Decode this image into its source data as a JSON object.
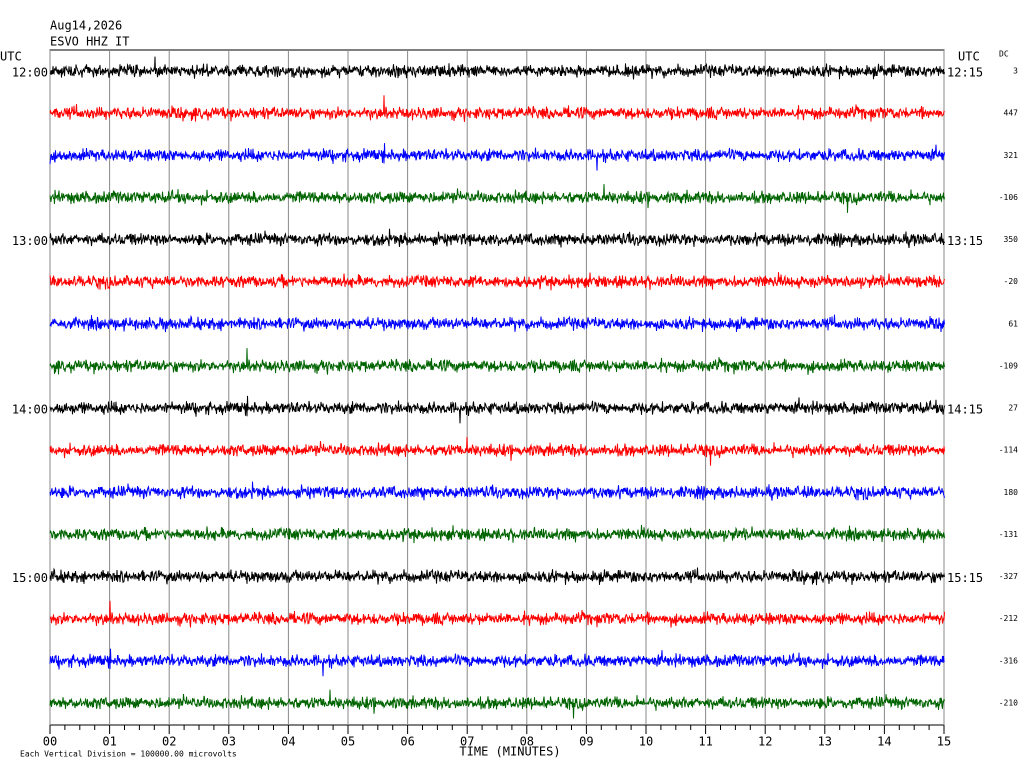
{
  "chart_data": {
    "type": "helicorder",
    "date": "Aug14,2026",
    "station": "ESVO HHZ IT",
    "left_axis_label": "UTC",
    "right_axis_label": "UTC",
    "dc_label": "DC",
    "left_times": [
      "12:00",
      "13:00",
      "14:00",
      "15:00"
    ],
    "right_times": [
      "12:15",
      "13:15",
      "14:15",
      "15:15"
    ],
    "dc_values": [
      3,
      447,
      321,
      -106,
      350,
      -20,
      61,
      -109,
      27,
      -114,
      180,
      -131,
      -327,
      -212,
      -316,
      -210
    ],
    "trace_colors": [
      "#000000",
      "#ff0000",
      "#0000ff",
      "#006400"
    ],
    "xlabel": "TIME (MINUTES)",
    "xlim": [
      0,
      15
    ],
    "xticks": [
      {
        "value": 0,
        "label": "00"
      },
      {
        "value": 1,
        "label": "01"
      },
      {
        "value": 2,
        "label": "02"
      },
      {
        "value": 3,
        "label": "03"
      },
      {
        "value": 4,
        "label": "04"
      },
      {
        "value": 5,
        "label": "05"
      },
      {
        "value": 6,
        "label": "06"
      },
      {
        "value": 7,
        "label": "07"
      },
      {
        "value": 8,
        "label": "08"
      },
      {
        "value": 9,
        "label": "09"
      },
      {
        "value": 10,
        "label": "10"
      },
      {
        "value": 11,
        "label": "11"
      },
      {
        "value": 12,
        "label": "12"
      },
      {
        "value": 13,
        "label": "13"
      },
      {
        "value": 14,
        "label": "14"
      },
      {
        "value": 15,
        "label": "15"
      }
    ],
    "footnote": "Each Vertical Division = 100000.00 microvolts",
    "grid": true
  }
}
